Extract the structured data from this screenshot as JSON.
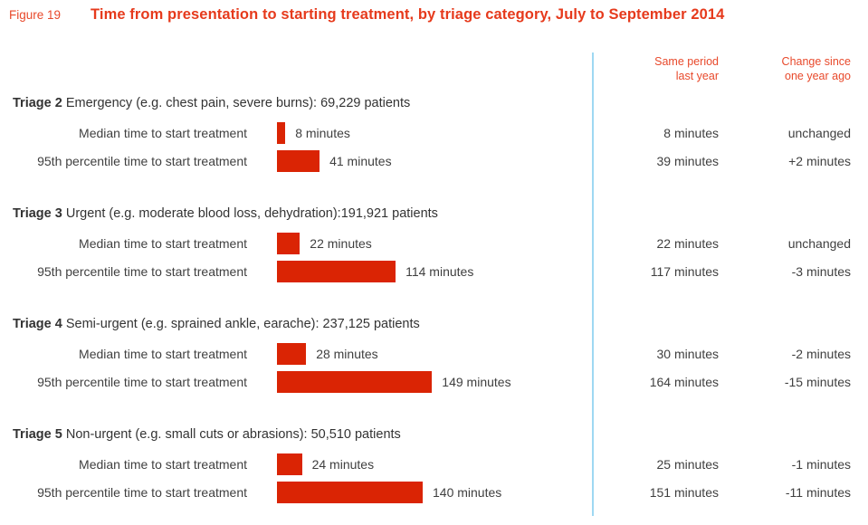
{
  "figure_label": "Figure 19",
  "title": "Time from presentation to starting treatment, by triage category, July to September 2014",
  "column_headers": {
    "same_period": "Same period\nlast year",
    "change": "Change since\none year ago"
  },
  "colors": {
    "bar_red": "#da2404",
    "title_orange": "#e63a1c",
    "header_orange": "#e8492b",
    "divider_blue": "#9ed8f2",
    "text_gray": "#3f3f3f"
  },
  "sections": [
    {
      "label": "Triage 2",
      "description": " Emergency (e.g. chest pain, severe burns): 69,229 patients",
      "rows": [
        {
          "label": "Median time to start treatment",
          "minutes": 8,
          "value": "8 minutes",
          "last_year": "8 minutes",
          "change": "unchanged"
        },
        {
          "label": "95th percentile time to start treatment",
          "minutes": 41,
          "value": "41 minutes",
          "last_year": "39 minutes",
          "change": "+2 minutes"
        }
      ]
    },
    {
      "label": "Triage 3",
      "description": " Urgent (e.g. moderate blood loss, dehydration):191,921 patients",
      "rows": [
        {
          "label": "Median time to start treatment",
          "minutes": 22,
          "value": "22 minutes",
          "last_year": "22 minutes",
          "change": "unchanged"
        },
        {
          "label": "95th percentile time to start treatment",
          "minutes": 114,
          "value": "114 minutes",
          "last_year": "117 minutes",
          "change": "-3 minutes"
        }
      ]
    },
    {
      "label": "Triage 4",
      "description": " Semi-urgent (e.g. sprained ankle, earache): 237,125 patients",
      "rows": [
        {
          "label": "Median time to start treatment",
          "minutes": 28,
          "value": "28 minutes",
          "last_year": "30 minutes",
          "change": "-2 minutes"
        },
        {
          "label": "95th percentile time to start treatment",
          "minutes": 149,
          "value": "149 minutes",
          "last_year": "164 minutes",
          "change": "-15 minutes"
        }
      ]
    },
    {
      "label": "Triage 5",
      "description": " Non-urgent (e.g. small cuts or abrasions): 50,510 patients",
      "rows": [
        {
          "label": "Median time to start treatment",
          "minutes": 24,
          "value": "24 minutes",
          "last_year": "25 minutes",
          "change": "-1 minutes"
        },
        {
          "label": "95th percentile time to start treatment",
          "minutes": 140,
          "value": "140 minutes",
          "last_year": "151 minutes",
          "change": "-11 minutes"
        }
      ]
    }
  ],
  "chart_data": {
    "type": "bar",
    "orientation": "horizontal",
    "title": "Time from presentation to starting treatment, by triage category, July to September 2014",
    "unit": "minutes",
    "categories": [
      "Triage 2 Emergency (e.g. chest pain, severe burns): 69,229 patients",
      "Triage 3 Urgent (e.g. moderate blood loss, dehydration):191,921 patients",
      "Triage 4 Semi-urgent (e.g. sprained ankle, earache): 237,125 patients",
      "Triage 5 Non-urgent (e.g. small cuts or abrasions): 50,510 patients"
    ],
    "series": [
      {
        "name": "Median time to start treatment",
        "values": [
          8,
          22,
          28,
          24
        ]
      },
      {
        "name": "95th percentile time to start treatment",
        "values": [
          41,
          114,
          149,
          140
        ]
      }
    ],
    "comparison_columns": [
      {
        "name": "Same period last year",
        "median": [
          "8 minutes",
          "22 minutes",
          "30 minutes",
          "25 minutes"
        ],
        "p95": [
          "39 minutes",
          "117 minutes",
          "164 minutes",
          "151 minutes"
        ]
      },
      {
        "name": "Change since one year ago",
        "median": [
          "unchanged",
          "unchanged",
          "-2 minutes",
          "-1 minutes"
        ],
        "p95": [
          "+2 minutes",
          "-3 minutes",
          "-15 minutes",
          "-11 minutes"
        ]
      }
    ],
    "bar_color": "#da2404",
    "legend_position": "none",
    "grid": false
  }
}
